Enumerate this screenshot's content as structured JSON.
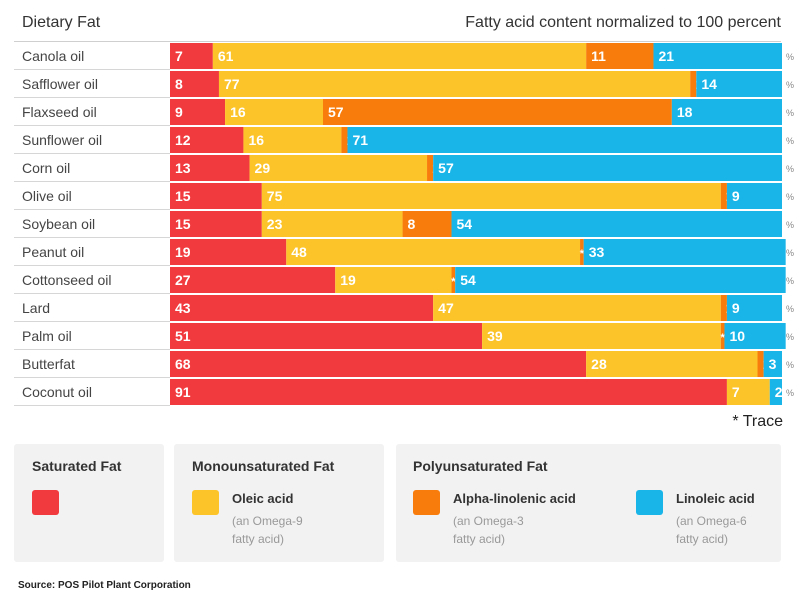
{
  "header": {
    "title": "Dietary Fat",
    "subtitle": "Fatty acid content normalized to 100 percent"
  },
  "colors": {
    "saturated": "#f13a3d",
    "oleic": "#fcc429",
    "alpha": "#f87c0b",
    "linoleic": "#19b5e9",
    "label": "#ffffff"
  },
  "chart_data": {
    "type": "bar",
    "stacked": true,
    "orientation": "horizontal",
    "categories": [
      "Canola oil",
      "Safflower oil",
      "Flaxseed oil",
      "Sunflower oil",
      "Corn oil",
      "Olive oil",
      "Soybean oil",
      "Peanut oil",
      "Cottonseed oil",
      "Lard",
      "Palm oil",
      "Butterfat",
      "Coconut oil"
    ],
    "series": [
      {
        "name": "Saturated Fat",
        "color_key": "saturated",
        "values": [
          7,
          8,
          9,
          12,
          13,
          15,
          15,
          19,
          27,
          43,
          51,
          68,
          91
        ],
        "labels": [
          "7",
          "8",
          "9",
          "12",
          "13",
          "15",
          "15",
          "19",
          "27",
          "43",
          "51",
          "68",
          "91"
        ]
      },
      {
        "name": "Oleic acid",
        "color_key": "oleic",
        "values": [
          61,
          77,
          16,
          16,
          29,
          75,
          23,
          48,
          19,
          47,
          39,
          28,
          7
        ],
        "labels": [
          "61",
          "77",
          "16",
          "16",
          "29",
          "75",
          "23",
          "48",
          "19",
          "47",
          "39",
          "28",
          "7"
        ]
      },
      {
        "name": "Alpha-linolenic acid",
        "color_key": "alpha",
        "values": [
          11,
          1,
          57,
          1,
          1,
          1,
          8,
          0.6,
          0.6,
          1,
          0.6,
          1,
          0
        ],
        "labels": [
          "11",
          "1",
          "57",
          "1",
          "1",
          "1",
          "8",
          "*",
          "*",
          "1",
          "*",
          "1",
          ""
        ]
      },
      {
        "name": "Linoleic acid",
        "color_key": "linoleic",
        "values": [
          21,
          14,
          18,
          71,
          57,
          9,
          54,
          33,
          54,
          9,
          10,
          3,
          2
        ],
        "labels": [
          "21",
          "14",
          "18",
          "71",
          "57",
          "9",
          "54",
          "33",
          "54",
          "9",
          "10",
          "3",
          "2"
        ]
      }
    ],
    "xlim": [
      0,
      100
    ],
    "row_suffix": "%",
    "trace_symbol": "*"
  },
  "trace_note": "* Trace",
  "legend": {
    "saturated": {
      "heading": "Saturated Fat"
    },
    "mono": {
      "heading": "Monounsaturated Fat",
      "item": {
        "name": "Oleic acid",
        "desc_1": "(an Omega-9",
        "desc_2": "fatty acid)"
      }
    },
    "poly": {
      "heading": "Polyunsaturated Fat",
      "item_a": {
        "name": "Alpha-linolenic acid",
        "desc_1": "(an Omega-3",
        "desc_2": "fatty acid)"
      },
      "item_b": {
        "name": "Linoleic acid",
        "desc_1": "(an Omega-6",
        "desc_2": "fatty acid)"
      }
    }
  },
  "source": "Source: POS Pilot Plant Corporation"
}
